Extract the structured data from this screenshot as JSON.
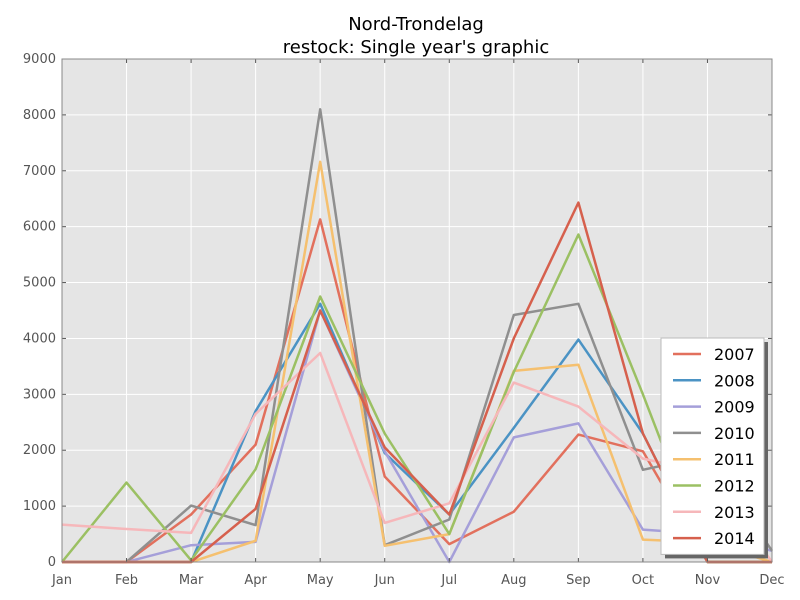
{
  "chart_data": {
    "type": "line",
    "title": "Nord-Trondelag",
    "subtitle": "restock: Single year's graphic",
    "xlabel": "",
    "ylabel": "",
    "categories": [
      "Jan",
      "Feb",
      "Mar",
      "Apr",
      "May",
      "Jun",
      "Jul",
      "Aug",
      "Sep",
      "Oct",
      "Nov",
      "Dec"
    ],
    "ylim": [
      0,
      9000
    ],
    "yticks": [
      0,
      1000,
      2000,
      3000,
      4000,
      5000,
      6000,
      7000,
      8000,
      9000
    ],
    "grid": true,
    "legend_position": "lower-right",
    "series": [
      {
        "name": "2007",
        "color": "#e2705d",
        "values": [
          0,
          0,
          850,
          2100,
          6130,
          1530,
          320,
          900,
          2280,
          1980,
          0,
          0
        ]
      },
      {
        "name": "2008",
        "color": "#4b93c4",
        "values": [
          0,
          0,
          0,
          2700,
          4620,
          1950,
          850,
          2400,
          3980,
          2300,
          0,
          0
        ]
      },
      {
        "name": "2009",
        "color": "#a59fd9",
        "values": [
          0,
          0,
          300,
          360,
          4500,
          1980,
          0,
          2230,
          2480,
          580,
          500,
          200
        ]
      },
      {
        "name": "2010",
        "color": "#8f8f8f",
        "values": [
          0,
          0,
          1010,
          660,
          8100,
          300,
          760,
          4420,
          4620,
          1650,
          1900,
          200
        ]
      },
      {
        "name": "2011",
        "color": "#f5c06f",
        "values": [
          0,
          0,
          0,
          380,
          7160,
          290,
          500,
          3420,
          3530,
          400,
          350,
          0
        ]
      },
      {
        "name": "2012",
        "color": "#9bc063",
        "values": [
          0,
          1420,
          30,
          1660,
          4750,
          2300,
          500,
          3400,
          5860,
          3000,
          0,
          0
        ]
      },
      {
        "name": "2013",
        "color": "#f6b7ba",
        "values": [
          670,
          590,
          520,
          2650,
          3740,
          700,
          1050,
          3210,
          2780,
          1850,
          1600,
          0
        ]
      },
      {
        "name": "2014",
        "color": "#d6604d",
        "values": [
          0,
          0,
          0,
          950,
          4500,
          2050,
          850,
          4000,
          6430,
          2300,
          0,
          0
        ]
      }
    ]
  }
}
